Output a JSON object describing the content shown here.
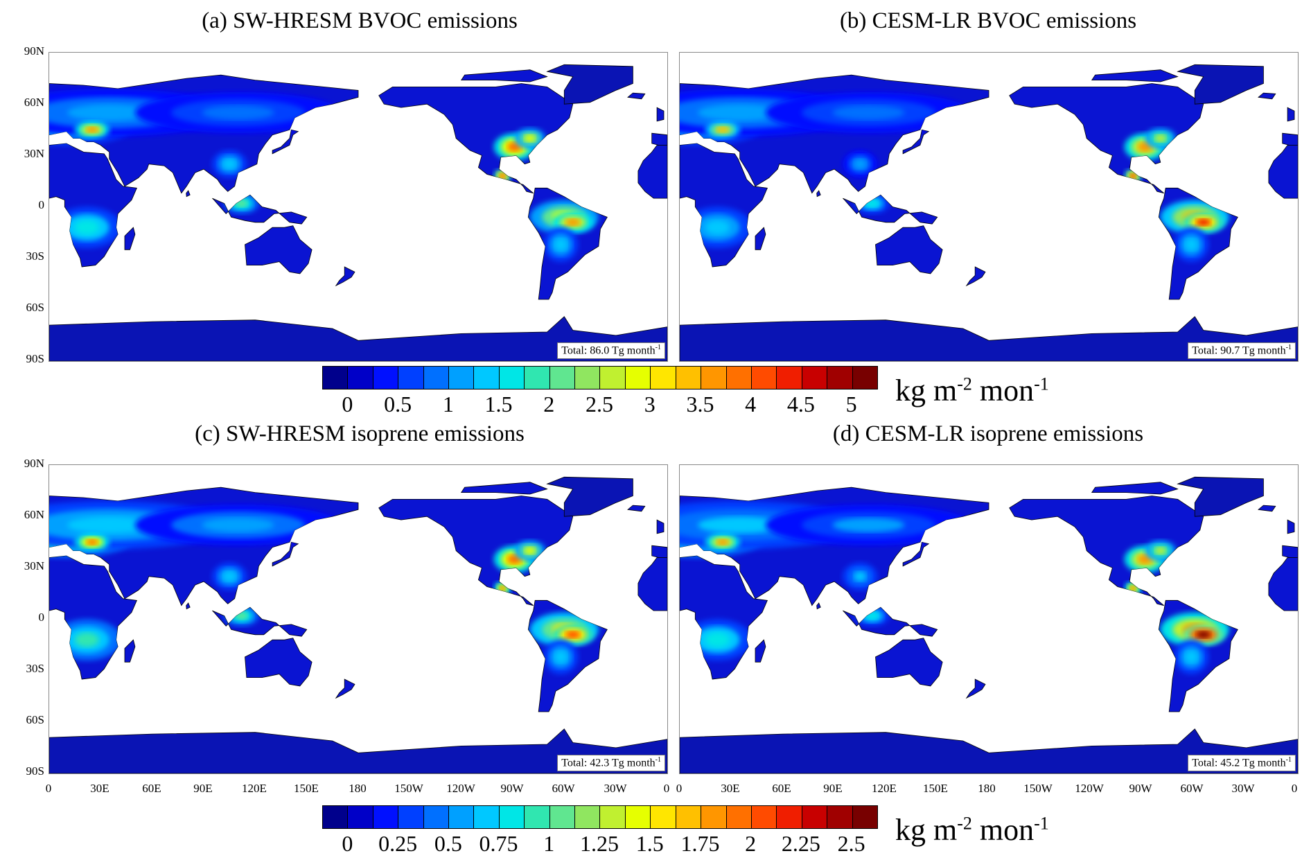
{
  "panels": [
    {
      "title": "(a) SW-HRESM BVOC emissions",
      "total": "Total: 86.0 Tg month",
      "total_sup": "-1",
      "hot_amazon": 0.7,
      "hot_us": 0.75
    },
    {
      "title": "(b) CESM-LR BVOC emissions",
      "total": "Total: 90.7 Tg month",
      "total_sup": "-1",
      "hot_amazon": 0.85,
      "hot_us": 0.7
    },
    {
      "title": "(c) SW-HRESM isoprene emissions",
      "total": "Total: 42.3 Tg month",
      "total_sup": "-1",
      "hot_amazon": 0.8,
      "hot_us": 0.75
    },
    {
      "title": "(d) CESM-LR isoprene emissions",
      "total": "Total: 45.2 Tg month",
      "total_sup": "-1",
      "hot_amazon": 1.0,
      "hot_us": 0.7
    }
  ],
  "lat_labels": [
    "90N",
    "60N",
    "30N",
    "0",
    "30S",
    "60S",
    "90S"
  ],
  "lon_labels": [
    "0",
    "30E",
    "60E",
    "90E",
    "120E",
    "150E",
    "180",
    "150W",
    "120W",
    "90W",
    "60W",
    "30W",
    "0"
  ],
  "lon_labels_right": [
    "0",
    "30E",
    "60E",
    "90E",
    "120E",
    "150E",
    "180",
    "150W",
    "120W",
    "90W",
    "60W",
    "30W",
    "0"
  ],
  "colorbar_top": {
    "ticks": [
      "0",
      "0.5",
      "1",
      "1.5",
      "2",
      "2.5",
      "3",
      "3.5",
      "4",
      "4.5",
      "5"
    ],
    "unit": "kg m",
    "unit_sup1": "-2",
    "unit_mid": " mon",
    "unit_sup2": "-1"
  },
  "colorbar_bottom": {
    "ticks": [
      "0",
      "0.25",
      "0.5",
      "0.75",
      "1",
      "1.25",
      "1.5",
      "1.75",
      "2",
      "2.25",
      "2.5"
    ],
    "unit": "kg m",
    "unit_sup1": "-2",
    "unit_mid": " mon",
    "unit_sup2": "-1"
  },
  "colors": {
    "scale": [
      "#00008c",
      "#0000c8",
      "#0010ff",
      "#0040ff",
      "#0070ff",
      "#00a0ff",
      "#00c8ff",
      "#00e6e6",
      "#30e6b0",
      "#60e690",
      "#90e660",
      "#c0f030",
      "#e6ff00",
      "#ffe600",
      "#ffc000",
      "#ff9600",
      "#ff7000",
      "#ff4b00",
      "#f01e00",
      "#c80000",
      "#a00000",
      "#780000"
    ],
    "land": "#0a14d2",
    "ice": "#0a14b4",
    "ocean": "#ffffff"
  }
}
